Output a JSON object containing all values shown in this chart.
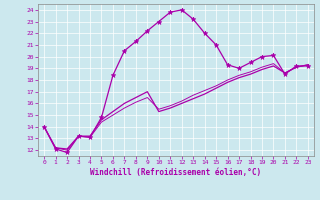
{
  "xlabel": "Windchill (Refroidissement éolien,°C)",
  "bg_color": "#cce8ee",
  "line_color": "#aa00aa",
  "xlim": [
    -0.5,
    23.5
  ],
  "ylim": [
    11.5,
    24.5
  ],
  "xticks": [
    0,
    1,
    2,
    3,
    4,
    5,
    6,
    7,
    8,
    9,
    10,
    11,
    12,
    13,
    14,
    15,
    16,
    17,
    18,
    19,
    20,
    21,
    22,
    23
  ],
  "yticks": [
    12,
    13,
    14,
    15,
    16,
    17,
    18,
    19,
    20,
    21,
    22,
    23,
    24
  ],
  "series1_x": [
    0,
    1,
    2,
    3,
    4,
    5,
    6,
    7,
    8,
    9,
    10,
    11,
    12,
    13,
    14,
    15,
    16,
    17,
    18,
    19,
    20,
    21,
    22,
    23
  ],
  "series1_y": [
    14.0,
    12.1,
    11.8,
    13.2,
    13.1,
    14.8,
    18.4,
    20.5,
    21.3,
    22.2,
    23.0,
    23.8,
    24.0,
    23.2,
    22.0,
    21.0,
    19.3,
    19.0,
    19.5,
    20.0,
    20.1,
    18.5,
    19.2,
    19.2
  ],
  "series2_x": [
    0,
    1,
    2,
    3,
    4,
    5,
    6,
    7,
    8,
    9,
    10,
    11,
    12,
    13,
    14,
    15,
    16,
    17,
    18,
    19,
    20,
    21,
    22,
    23
  ],
  "series2_y": [
    14.0,
    12.2,
    12.1,
    13.2,
    13.2,
    14.6,
    15.3,
    16.0,
    16.5,
    17.0,
    15.3,
    15.6,
    16.0,
    16.4,
    16.8,
    17.3,
    17.8,
    18.2,
    18.5,
    18.9,
    19.2,
    18.6,
    19.1,
    19.3
  ],
  "series3_x": [
    0,
    1,
    2,
    3,
    4,
    5,
    6,
    7,
    8,
    9,
    10,
    11,
    12,
    13,
    14,
    15,
    16,
    17,
    18,
    19,
    20,
    21,
    22,
    23
  ],
  "series3_y": [
    14.0,
    12.2,
    12.0,
    13.2,
    13.1,
    14.4,
    15.0,
    15.6,
    16.1,
    16.5,
    15.5,
    15.8,
    16.2,
    16.7,
    17.1,
    17.5,
    18.0,
    18.4,
    18.7,
    19.1,
    19.4,
    18.6,
    19.1,
    19.3
  ],
  "marker": "*",
  "markersize": 3.5,
  "linewidth": 0.9
}
